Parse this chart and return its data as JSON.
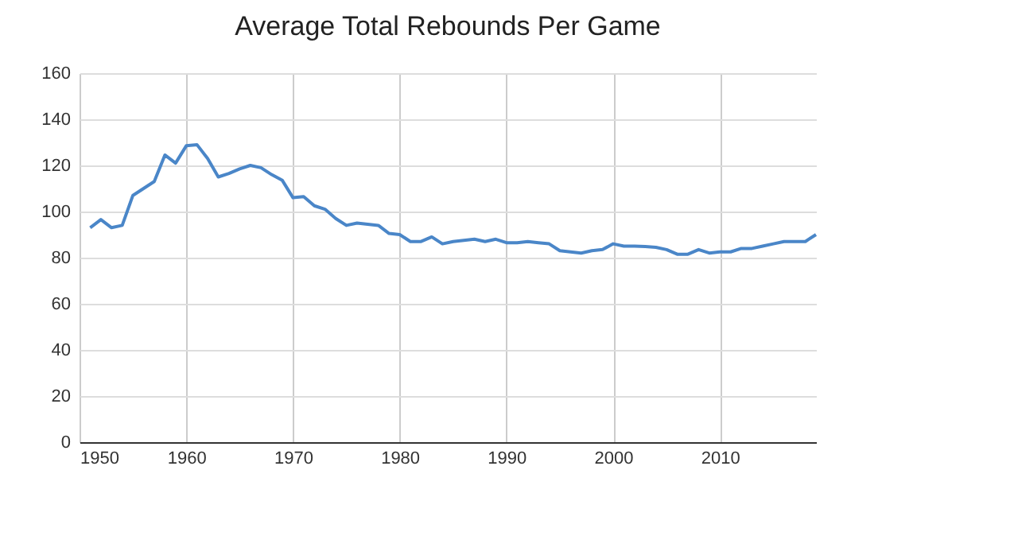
{
  "chart_data": {
    "type": "line",
    "title": "Average Total Rebounds Per Game",
    "x": [
      1951,
      1952,
      1953,
      1954,
      1955,
      1956,
      1957,
      1958,
      1959,
      1960,
      1961,
      1962,
      1963,
      1964,
      1965,
      1966,
      1967,
      1968,
      1969,
      1970,
      1971,
      1972,
      1973,
      1974,
      1975,
      1976,
      1977,
      1978,
      1979,
      1980,
      1981,
      1982,
      1983,
      1984,
      1985,
      1986,
      1987,
      1988,
      1989,
      1990,
      1991,
      1992,
      1993,
      1994,
      1995,
      1996,
      1997,
      1998,
      1999,
      2000,
      2001,
      2002,
      2003,
      2004,
      2005,
      2006,
      2007,
      2008,
      2009,
      2010,
      2011,
      2012,
      2013,
      2014,
      2015,
      2016,
      2017,
      2018,
      2019
    ],
    "series": [
      {
        "color": "#4a86c8",
        "values": [
          93,
          96.5,
          93,
          94,
          107,
          110,
          113,
          124.5,
          121,
          128.5,
          129,
          123,
          115,
          116.5,
          118.5,
          120,
          119,
          116,
          113.5,
          106,
          106.5,
          102.5,
          101,
          97,
          94,
          95,
          94.5,
          94,
          90.5,
          90,
          87,
          87,
          89,
          86,
          87,
          87.5,
          88,
          87,
          88,
          86.5,
          86.5,
          87,
          86.5,
          86,
          83,
          82.5,
          82,
          83,
          83.5,
          86,
          85,
          85,
          84.8,
          84.5,
          83.5,
          81.5,
          81.5,
          83.5,
          82,
          82.5,
          82.5,
          84,
          84,
          85,
          86,
          87,
          87,
          87,
          90
        ]
      }
    ],
    "xlim": [
      1950,
      2019
    ],
    "xticks": [
      1950,
      1960,
      1970,
      1980,
      1990,
      2000,
      2010
    ],
    "ylim": [
      0,
      160
    ],
    "yticks": [
      0,
      20,
      40,
      60,
      80,
      100,
      120,
      140,
      160
    ],
    "grid": true,
    "marker": "none",
    "line_style": "solid"
  }
}
